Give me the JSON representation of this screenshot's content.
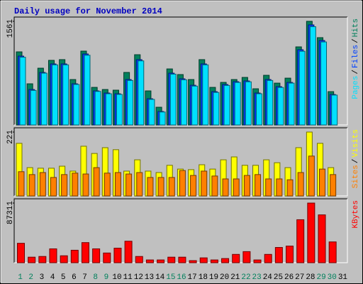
{
  "chart_data": {
    "title": "Daily usage for November 2014",
    "categories": [
      "1",
      "2",
      "3",
      "4",
      "5",
      "6",
      "7",
      "8",
      "9",
      "10",
      "11",
      "12",
      "13",
      "14",
      "15",
      "16",
      "17",
      "18",
      "19",
      "20",
      "21",
      "22",
      "23",
      "24",
      "25",
      "26",
      "27",
      "28",
      "29",
      "30",
      "31"
    ],
    "category_colors": [
      "#00805c",
      "#00805c",
      "#000000",
      "#000000",
      "#000000",
      "#000000",
      "#000000",
      "#00805c",
      "#00805c",
      "#000000",
      "#000000",
      "#000000",
      "#000000",
      "#000000",
      "#00805c",
      "#00805c",
      "#000000",
      "#000000",
      "#000000",
      "#000000",
      "#000000",
      "#00805c",
      "#00805c",
      "#000000",
      "#000000",
      "#000000",
      "#000000",
      "#000000",
      "#00805c",
      "#00805c",
      "#000000"
    ],
    "legend_separator": "/",
    "panels": [
      {
        "type": "bar",
        "ylim": [
          0,
          1561
        ],
        "yticks": [
          1561
        ],
        "series": [
          {
            "name": "Hits",
            "color": "#00805c",
            "values": [
              1101,
              620,
              855,
              973,
              984,
              684,
              1112,
              566,
              534,
              524,
              791,
              1058,
              513,
              267,
              844,
              759,
              684,
              984,
              566,
              641,
              684,
              716,
              545,
              748,
              630,
              705,
              1176,
              1561,
              1315,
              502,
              null
            ]
          },
          {
            "name": "Files",
            "color": "#0040ff",
            "values": [
              1037,
              534,
              791,
              919,
              919,
              620,
              1069,
              513,
              481,
              470,
              684,
              983,
              395,
              203,
              780,
              695,
              598,
              919,
              502,
              609,
              652,
              663,
              481,
              684,
              577,
              641,
              1133,
              1507,
              1272,
              459,
              null
            ]
          },
          {
            "name": "Pages",
            "color": "#00e0ff",
            "values": [
              1020,
              520,
              780,
              905,
              905,
              610,
              1050,
              505,
              470,
              460,
              670,
              965,
              385,
              195,
              765,
              680,
              585,
              905,
              490,
              595,
              640,
              650,
              470,
              670,
              565,
              630,
              1110,
              1480,
              1250,
              450,
              null
            ]
          }
        ]
      },
      {
        "type": "bar",
        "ylim": [
          0,
          221
        ],
        "yticks": [
          221
        ],
        "series": [
          {
            "name": "Visits",
            "color": "#ffff00",
            "values": [
              182,
              98,
              96,
              96,
              103,
              86,
              172,
              147,
              167,
              160,
              86,
              125,
              86,
              81,
              106,
              93,
              91,
              108,
              93,
              125,
              135,
              106,
              106,
              125,
              115,
              98,
              167,
              221,
              182,
              98,
              null
            ]
          },
          {
            "name": "Sites",
            "color": "#ff8000",
            "values": [
              84,
              74,
              81,
              64,
              74,
              79,
              76,
              98,
              79,
              81,
              76,
              81,
              64,
              64,
              64,
              88,
              71,
              86,
              69,
              59,
              59,
              71,
              74,
              59,
              59,
              56,
              81,
              138,
              93,
              74,
              null
            ]
          }
        ]
      },
      {
        "type": "bar",
        "ylim": [
          0,
          87311
        ],
        "yticks": [
          87311
        ],
        "series": [
          {
            "name": "KBytes",
            "color": "#ff0000",
            "values": [
              28420,
              8120,
              9135,
              20300,
              10150,
              18270,
              29435,
              20300,
              14210,
              21315,
              31465,
              9135,
              4060,
              4060,
              8120,
              8120,
              3045,
              7105,
              4060,
              6090,
              12180,
              16240,
              4060,
              12180,
              22330,
              24360,
              62930,
              87311,
              70035,
              30450,
              null
            ]
          }
        ]
      }
    ]
  }
}
